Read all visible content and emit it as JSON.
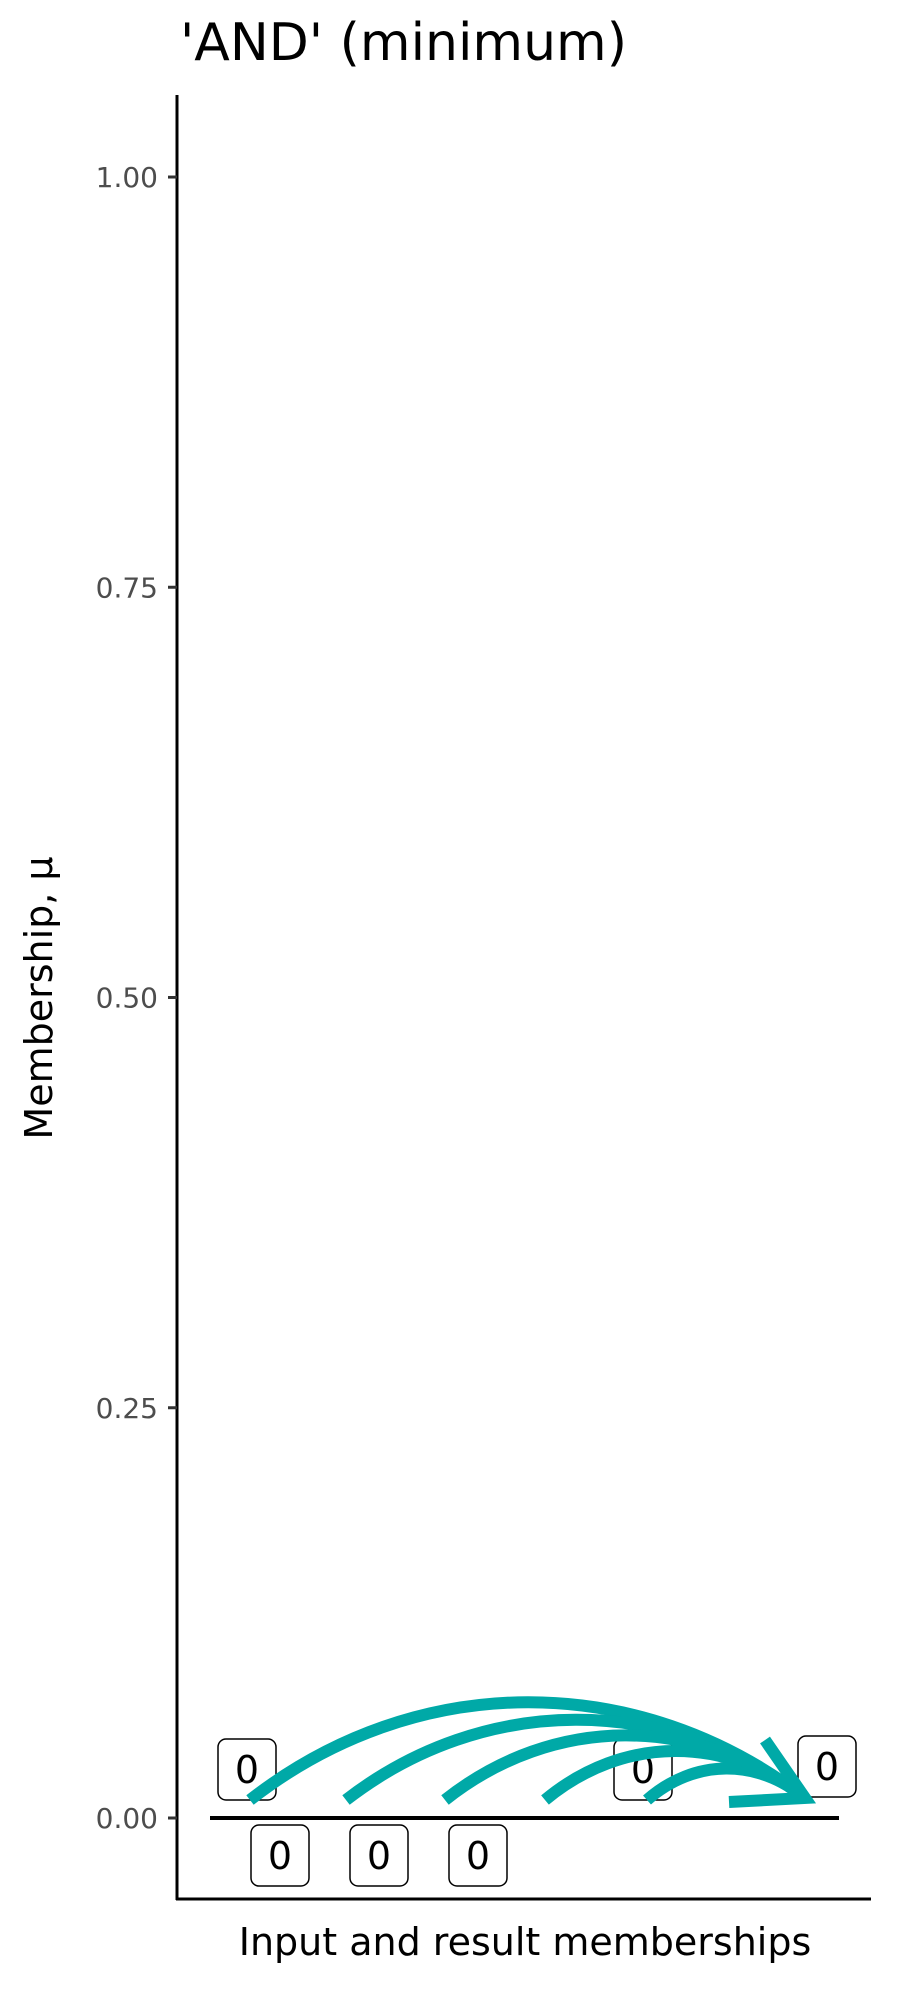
{
  "chart_data": {
    "type": "diagram-bar",
    "title": "'AND' (minimum)",
    "xlabel": "Input and result memberships",
    "ylabel": "Membership, μ",
    "ylim": [
      -0.05,
      1.05
    ],
    "yticks": [
      "0.00",
      "0.25",
      "0.50",
      "0.75",
      "1.00"
    ],
    "ytick_values": [
      0,
      0.25,
      0.5,
      0.75,
      1
    ],
    "inputs": [
      {
        "label": "0",
        "value": 0
      },
      {
        "label": "0",
        "value": 0
      },
      {
        "label": "0",
        "value": 0
      },
      {
        "label": "0",
        "value": 0
      },
      {
        "label": "0",
        "value": 0
      }
    ],
    "result": {
      "label": "0",
      "value": 0
    },
    "arrow_color": "#00A9A7",
    "grid": false
  }
}
